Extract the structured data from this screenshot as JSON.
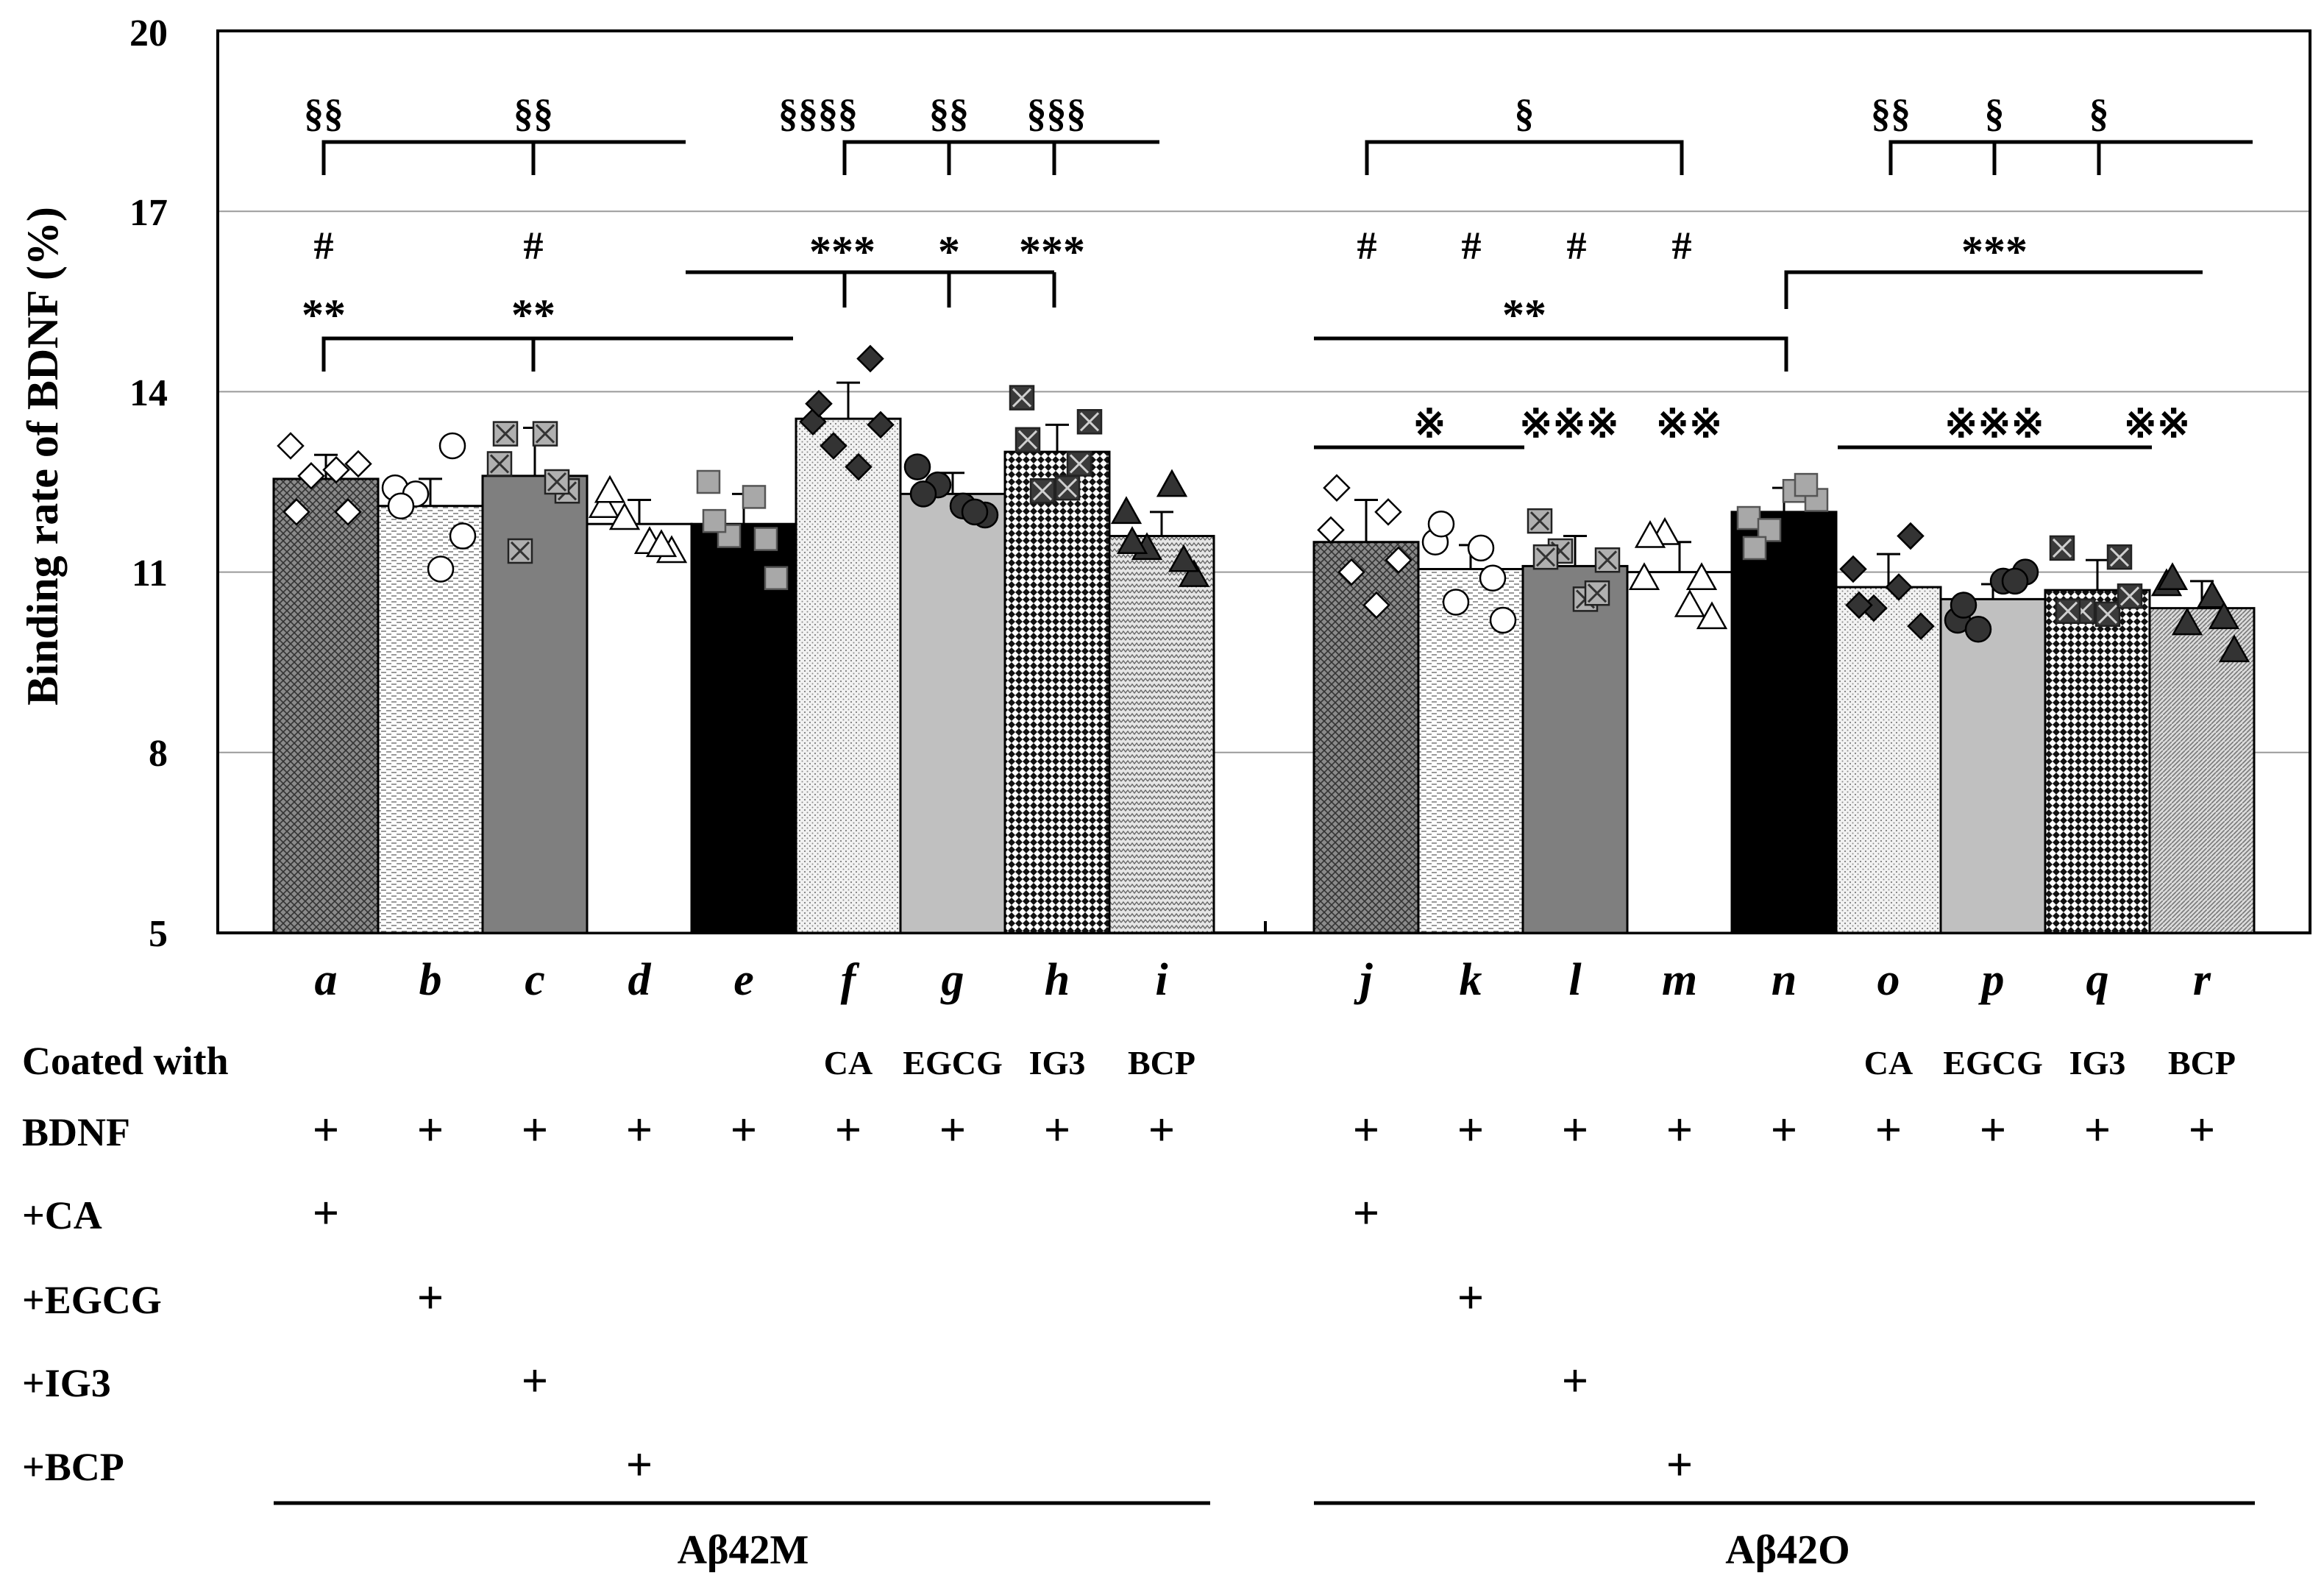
{
  "chart_data": {
    "type": "bar",
    "ylabel": "Binding rate of BDNF (%)",
    "ylim": [
      5,
      20
    ],
    "yticks": [
      "5",
      "8",
      "11",
      "14",
      "17",
      "20"
    ],
    "grid": true,
    "categories": [
      "a",
      "b",
      "c",
      "d",
      "e",
      "f",
      "g",
      "h",
      "i",
      "j",
      "k",
      "l",
      "m",
      "n",
      "o",
      "p",
      "q",
      "r"
    ],
    "values": [
      12.55,
      12.1,
      12.6,
      11.8,
      11.8,
      13.55,
      12.3,
      13.0,
      11.6,
      11.5,
      11.05,
      11.1,
      11.0,
      12.0,
      10.75,
      10.55,
      10.7,
      10.4
    ],
    "errors": [
      0.4,
      0.45,
      0.8,
      0.4,
      0.5,
      0.6,
      0.35,
      0.45,
      0.4,
      0.7,
      0.4,
      0.5,
      0.5,
      0.4,
      0.55,
      0.25,
      0.5,
      0.45
    ],
    "points": [
      [
        13.1,
        12.6,
        12.7,
        12.8,
        12.0,
        12.0
      ],
      [
        12.4,
        12.3,
        11.05,
        11.6,
        12.1,
        13.1
      ],
      [
        12.8,
        11.35,
        13.3,
        12.35,
        13.3,
        12.5
      ],
      [
        12.1,
        11.9,
        11.5,
        11.35,
        12.35,
        11.45
      ],
      [
        12.5,
        11.6,
        12.25,
        10.9,
        11.85,
        11.55
      ],
      [
        13.5,
        13.1,
        12.75,
        13.45,
        13.8,
        14.55
      ],
      [
        12.75,
        12.45,
        12.1,
        11.95,
        12.3,
        12.0
      ],
      [
        13.9,
        12.35,
        12.4,
        13.5,
        13.2,
        12.8
      ],
      [
        12.0,
        11.4,
        12.45,
        10.95,
        11.5,
        11.2
      ],
      [
        11.7,
        11.0,
        10.45,
        11.2,
        12.4,
        12.0
      ],
      [
        11.5,
        10.5,
        11.4,
        10.2,
        11.8,
        10.9
      ],
      [
        11.85,
        11.35,
        10.55,
        11.2,
        11.25,
        10.65
      ],
      [
        10.9,
        11.65,
        10.45,
        10.25,
        11.6,
        10.9
      ],
      [
        11.9,
        11.7,
        12.35,
        12.2,
        11.4,
        12.45
      ],
      [
        11.05,
        10.4,
        10.75,
        10.1,
        10.45,
        11.6
      ],
      [
        10.2,
        10.05,
        10.85,
        11.0,
        10.45,
        10.85
      ],
      [
        11.4,
        10.35,
        10.3,
        10.6,
        10.35,
        11.25
      ],
      [
        10.8,
        10.15,
        10.6,
        9.7,
        10.9,
        10.25
      ]
    ],
    "series": [
      {
        "name": "Binding rate of BDNF (%)",
        "values": [
          12.55,
          12.1,
          12.6,
          11.8,
          11.8,
          13.55,
          12.3,
          13.0,
          11.6,
          11.5,
          11.05,
          11.1,
          11.0,
          12.0,
          10.75,
          10.55,
          10.7,
          10.4
        ]
      }
    ],
    "groups": [
      {
        "label": "Aβ42M",
        "categories": [
          "a",
          "b",
          "c",
          "d",
          "e",
          "f",
          "g",
          "h",
          "i"
        ]
      },
      {
        "label": "Aβ42O",
        "categories": [
          "j",
          "k",
          "l",
          "m",
          "n",
          "o",
          "p",
          "q",
          "r"
        ]
      }
    ]
  },
  "table": {
    "coated_label": "Coated with",
    "coated": [
      "",
      "",
      "",
      "",
      "",
      "CA",
      "EGCG",
      "IG3",
      "BCP",
      "",
      "",
      "",
      "",
      "",
      "CA",
      "EGCG",
      "IG3",
      "BCP"
    ],
    "rows": [
      {
        "label": "BDNF",
        "marks": [
          1,
          1,
          1,
          1,
          1,
          1,
          1,
          1,
          1,
          1,
          1,
          1,
          1,
          1,
          1,
          1,
          1,
          1
        ]
      },
      {
        "label": "+CA",
        "marks": [
          1,
          0,
          0,
          0,
          0,
          0,
          0,
          0,
          0,
          1,
          0,
          0,
          0,
          0,
          0,
          0,
          0,
          0
        ]
      },
      {
        "label": "+EGCG",
        "marks": [
          0,
          1,
          0,
          0,
          0,
          0,
          0,
          0,
          0,
          0,
          1,
          0,
          0,
          0,
          0,
          0,
          0,
          0
        ]
      },
      {
        "label": "+IG3",
        "marks": [
          0,
          0,
          1,
          0,
          0,
          0,
          0,
          0,
          0,
          0,
          0,
          1,
          0,
          0,
          0,
          0,
          0,
          0
        ]
      },
      {
        "label": "+BCP",
        "marks": [
          0,
          0,
          0,
          1,
          0,
          0,
          0,
          0,
          0,
          0,
          0,
          0,
          1,
          0,
          0,
          0,
          0,
          0
        ]
      }
    ],
    "plus_symbol": "+",
    "group_labels": [
      "Aβ42M",
      "Aβ42O"
    ]
  },
  "annotations": {
    "section_a": "§§",
    "section_c": "§§",
    "section_f": "§§§§",
    "section_g": "§§",
    "section_h": "§§§",
    "section_jm": "§",
    "section_o": "§§",
    "section_p": "§",
    "section_q": "§",
    "hash": "#",
    "star_a": "**",
    "star_c": "**",
    "star_f": "***",
    "star_g": "*",
    "star_h": "***",
    "star_n": "**",
    "star_or": "***",
    "ref_k": "※",
    "ref_l": "※※※",
    "ref_m": "※※",
    "ref_q": "※※※",
    "ref_r": "※※"
  }
}
